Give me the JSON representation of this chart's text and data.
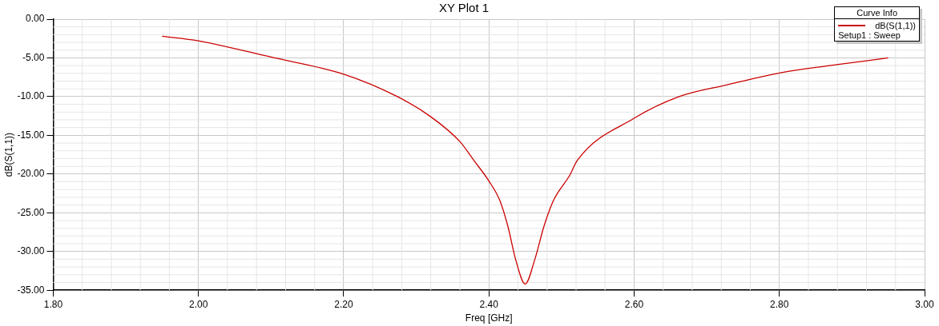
{
  "chart_data": {
    "type": "line",
    "title": "XY Plot 1",
    "xlabel": "Freq [GHz]",
    "ylabel": "dB(S(1,1))",
    "legend_title": "Curve Info",
    "annotations": [
      "Setup1 : Sweep"
    ],
    "x": [
      1.95,
      2.0,
      2.1,
      2.2,
      2.274,
      2.32,
      2.36,
      2.379,
      2.4,
      2.415,
      2.426,
      2.437,
      2.45,
      2.463,
      2.476,
      2.489,
      2.511,
      2.522,
      2.6,
      2.662,
      2.727,
      2.803,
      2.877,
      2.95
    ],
    "series": [
      {
        "name": "dB(S(1,1))",
        "color": "#cc0000",
        "values": [
          -2.2,
          -2.8,
          -4.9,
          -7.1,
          -10.0,
          -12.6,
          -15.8,
          -18.2,
          -20.9,
          -23.4,
          -26.7,
          -31.1,
          -34.2,
          -31.1,
          -26.7,
          -23.4,
          -20.2,
          -18.2,
          -12.8,
          -10.0,
          -8.5,
          -6.9,
          -5.9,
          -5.0
        ]
      }
    ],
    "xlim": [
      1.8,
      3.0
    ],
    "xticks": [
      {
        "value": 1.8,
        "label": "1.80"
      },
      {
        "value": 2.0,
        "label": "2.00"
      },
      {
        "value": 2.2,
        "label": "2.20"
      },
      {
        "value": 2.4,
        "label": "2.40"
      },
      {
        "value": 2.6,
        "label": "2.60"
      },
      {
        "value": 2.8,
        "label": "2.80"
      },
      {
        "value": 3.0,
        "label": "3.00"
      }
    ],
    "ylim": [
      -35,
      0
    ],
    "yticks": [
      {
        "value": -35,
        "label": "-35.00"
      },
      {
        "value": -30,
        "label": "-30.00"
      },
      {
        "value": -25,
        "label": "-25.00"
      },
      {
        "value": -20,
        "label": "-20.00"
      },
      {
        "value": -15,
        "label": "-15.00"
      },
      {
        "value": -10,
        "label": "-10.00"
      },
      {
        "value": -5,
        "label": "-5.00"
      },
      {
        "value": 0,
        "label": "0.00"
      }
    ],
    "grid": true,
    "legend": "top right",
    "marker": "none",
    "line_style": "solid"
  }
}
